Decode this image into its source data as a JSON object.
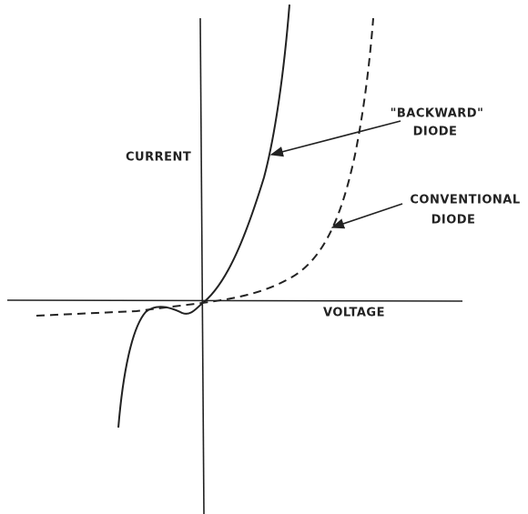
{
  "axes": {
    "y_label": "CURRENT",
    "x_label": "VOLTAGE"
  },
  "annotations": [
    {
      "lines": [
        "\"BACKWARD\"",
        "DIODE"
      ]
    },
    {
      "lines": [
        "CONVENTIONAL",
        "DIODE"
      ]
    }
  ]
}
